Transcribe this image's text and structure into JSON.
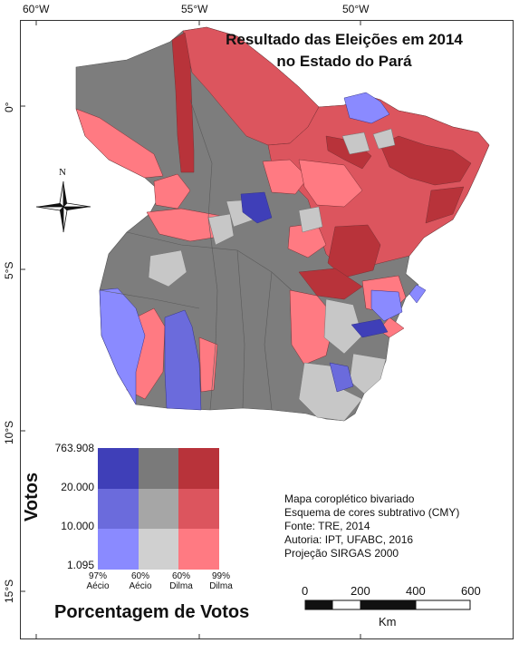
{
  "title": [
    "Resultado das Eleições em 2014",
    "no Estado do Pará"
  ],
  "axes": {
    "lon": [
      "60°W",
      "55°W",
      "50°W"
    ],
    "lat": [
      "0°",
      "5°S",
      "10°S",
      "15°S"
    ]
  },
  "compass": {
    "north": "N"
  },
  "legend": {
    "y_title": "Votos",
    "y_breaks": [
      "763.908",
      "20.000",
      "10.000",
      "1.095"
    ],
    "x_title": "Porcentagem de Votos",
    "x_breaks": [
      {
        "pct": "97%",
        "name": "Aécio"
      },
      {
        "pct": "60%",
        "name": "Aécio"
      },
      {
        "pct": "60%",
        "name": "Dilma"
      },
      {
        "pct": "99%",
        "name": "Dilma"
      }
    ],
    "colors": [
      [
        "#3f3fb8",
        "#7a7a7a",
        "#b8333a"
      ],
      [
        "#6b6bdc",
        "#a6a6a6",
        "#dc555e"
      ],
      [
        "#8a8aff",
        "#d0d0d0",
        "#ff7a82"
      ]
    ]
  },
  "info": [
    "Mapa coroplético bivariado",
    "Esquema de cores subtrativo (CMY)",
    "Fonte: TRE, 2014",
    "Autoria: IPT, UFABC, 2016",
    "Projeção SIRGAS 2000"
  ],
  "scale": {
    "ticks": [
      "0",
      "200",
      "400",
      "600"
    ],
    "unit": "Km"
  }
}
